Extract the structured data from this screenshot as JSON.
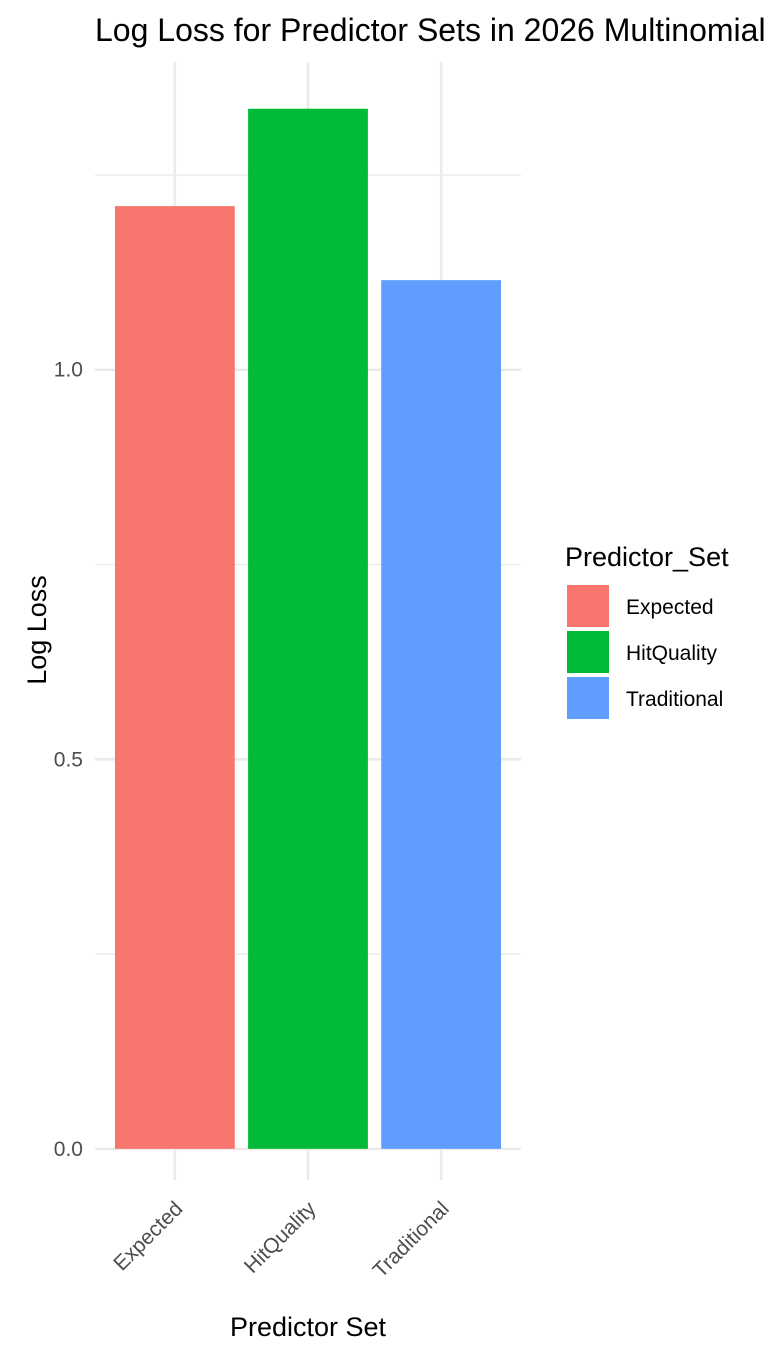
{
  "chart_data": {
    "type": "bar",
    "title": "Log Loss for Predictor Sets in 2026 Multinomial Model",
    "xlabel": "Predictor Set",
    "ylabel": "Log Loss",
    "categories": [
      "Expected",
      "HitQuality",
      "Traditional"
    ],
    "values": [
      1.21,
      1.335,
      1.115
    ],
    "colors": [
      "#F8766D",
      "#00BA38",
      "#619CFF"
    ],
    "ylim": [
      -0.04,
      1.395
    ],
    "yticks": [
      0.0,
      0.5,
      1.0
    ],
    "yticks_minor": [
      0.25,
      0.75,
      1.25
    ],
    "ytick_labels": [
      "0.0",
      "0.5",
      "1.0"
    ],
    "grid": true,
    "legend": {
      "title": "Predictor_Set",
      "position": "right",
      "entries": [
        "Expected",
        "HitQuality",
        "Traditional"
      ]
    }
  }
}
